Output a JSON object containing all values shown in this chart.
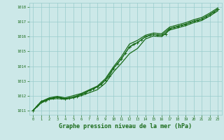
{
  "title": "Graphe pression niveau de la mer (hPa)",
  "bg_color": "#cce8e8",
  "grid_color": "#99cccc",
  "line_color": "#1a6b1a",
  "xlim": [
    -0.5,
    23.5
  ],
  "ylim": [
    1010.7,
    1018.3
  ],
  "xticks": [
    0,
    1,
    2,
    3,
    4,
    5,
    6,
    7,
    8,
    9,
    10,
    11,
    12,
    13,
    14,
    15,
    16,
    17,
    18,
    19,
    20,
    21,
    22,
    23
  ],
  "yticks": [
    1011,
    1012,
    1013,
    1014,
    1015,
    1016,
    1017,
    1018
  ],
  "series_main_x": [
    0,
    1,
    2,
    3,
    4,
    5,
    6,
    7,
    8,
    9,
    10,
    11,
    12,
    13,
    14,
    15,
    16,
    17,
    18,
    19,
    20,
    21,
    22,
    23
  ],
  "series_main_y": [
    1011.0,
    1011.6,
    1011.8,
    1011.9,
    1011.8,
    1011.9,
    1012.1,
    1012.35,
    1012.6,
    1013.05,
    1013.85,
    1014.5,
    1015.3,
    1015.6,
    1016.0,
    1016.15,
    1016.1,
    1016.55,
    1016.7,
    1016.85,
    1017.05,
    1017.2,
    1017.5,
    1017.85
  ],
  "series_upper_x": [
    0,
    1,
    2,
    3,
    4,
    5,
    6,
    7,
    8,
    9,
    10,
    11,
    12,
    13,
    14,
    15,
    16,
    17,
    18,
    19,
    20,
    21,
    22,
    23
  ],
  "series_upper_y": [
    1011.0,
    1011.6,
    1011.85,
    1011.95,
    1011.85,
    1012.0,
    1012.15,
    1012.4,
    1012.65,
    1013.15,
    1013.95,
    1014.65,
    1015.5,
    1015.75,
    1016.1,
    1016.25,
    1016.2,
    1016.65,
    1016.8,
    1016.95,
    1017.15,
    1017.3,
    1017.6,
    1017.95
  ],
  "series_lower_x": [
    0,
    1,
    2,
    3,
    4,
    5,
    6,
    7,
    8,
    9,
    10,
    11,
    12,
    13,
    14,
    15,
    16,
    17,
    18,
    19,
    20,
    21,
    22,
    23
  ],
  "series_lower_y": [
    1011.0,
    1011.5,
    1011.75,
    1011.8,
    1011.75,
    1011.85,
    1012.0,
    1012.2,
    1012.4,
    1012.85,
    1013.6,
    1014.2,
    1014.85,
    1015.2,
    1015.85,
    1016.05,
    1016.0,
    1016.45,
    1016.6,
    1016.75,
    1016.95,
    1017.1,
    1017.4,
    1017.75
  ],
  "series_wiggly_x": [
    0,
    0.5,
    1,
    1.5,
    2,
    2.5,
    3,
    3.5,
    4,
    4.5,
    5,
    5.5,
    6,
    6.5,
    7,
    7.5,
    8,
    8.5,
    9,
    9.5,
    10,
    10.5,
    11,
    11.5,
    12,
    12.5,
    13,
    13.5,
    14,
    14.5,
    15,
    15.5,
    16,
    16.5,
    17,
    17.5,
    18,
    18.5,
    19,
    19.5,
    20,
    20.5,
    21,
    21.5,
    22,
    22.5,
    23
  ],
  "series_wiggly_y": [
    1011.0,
    1011.3,
    1011.6,
    1011.65,
    1011.8,
    1011.85,
    1011.9,
    1011.85,
    1011.8,
    1011.82,
    1011.9,
    1011.95,
    1012.1,
    1012.15,
    1012.35,
    1012.45,
    1012.6,
    1012.75,
    1013.05,
    1013.3,
    1013.85,
    1014.15,
    1014.5,
    1014.9,
    1015.3,
    1015.5,
    1015.6,
    1015.8,
    1016.0,
    1016.1,
    1016.15,
    1016.12,
    1016.1,
    1016.15,
    1016.55,
    1016.62,
    1016.7,
    1016.78,
    1016.85,
    1016.95,
    1017.05,
    1017.12,
    1017.2,
    1017.35,
    1017.5,
    1017.68,
    1017.85
  ],
  "marker_size": 2.5,
  "line_width": 0.9,
  "title_fontsize": 6.0
}
